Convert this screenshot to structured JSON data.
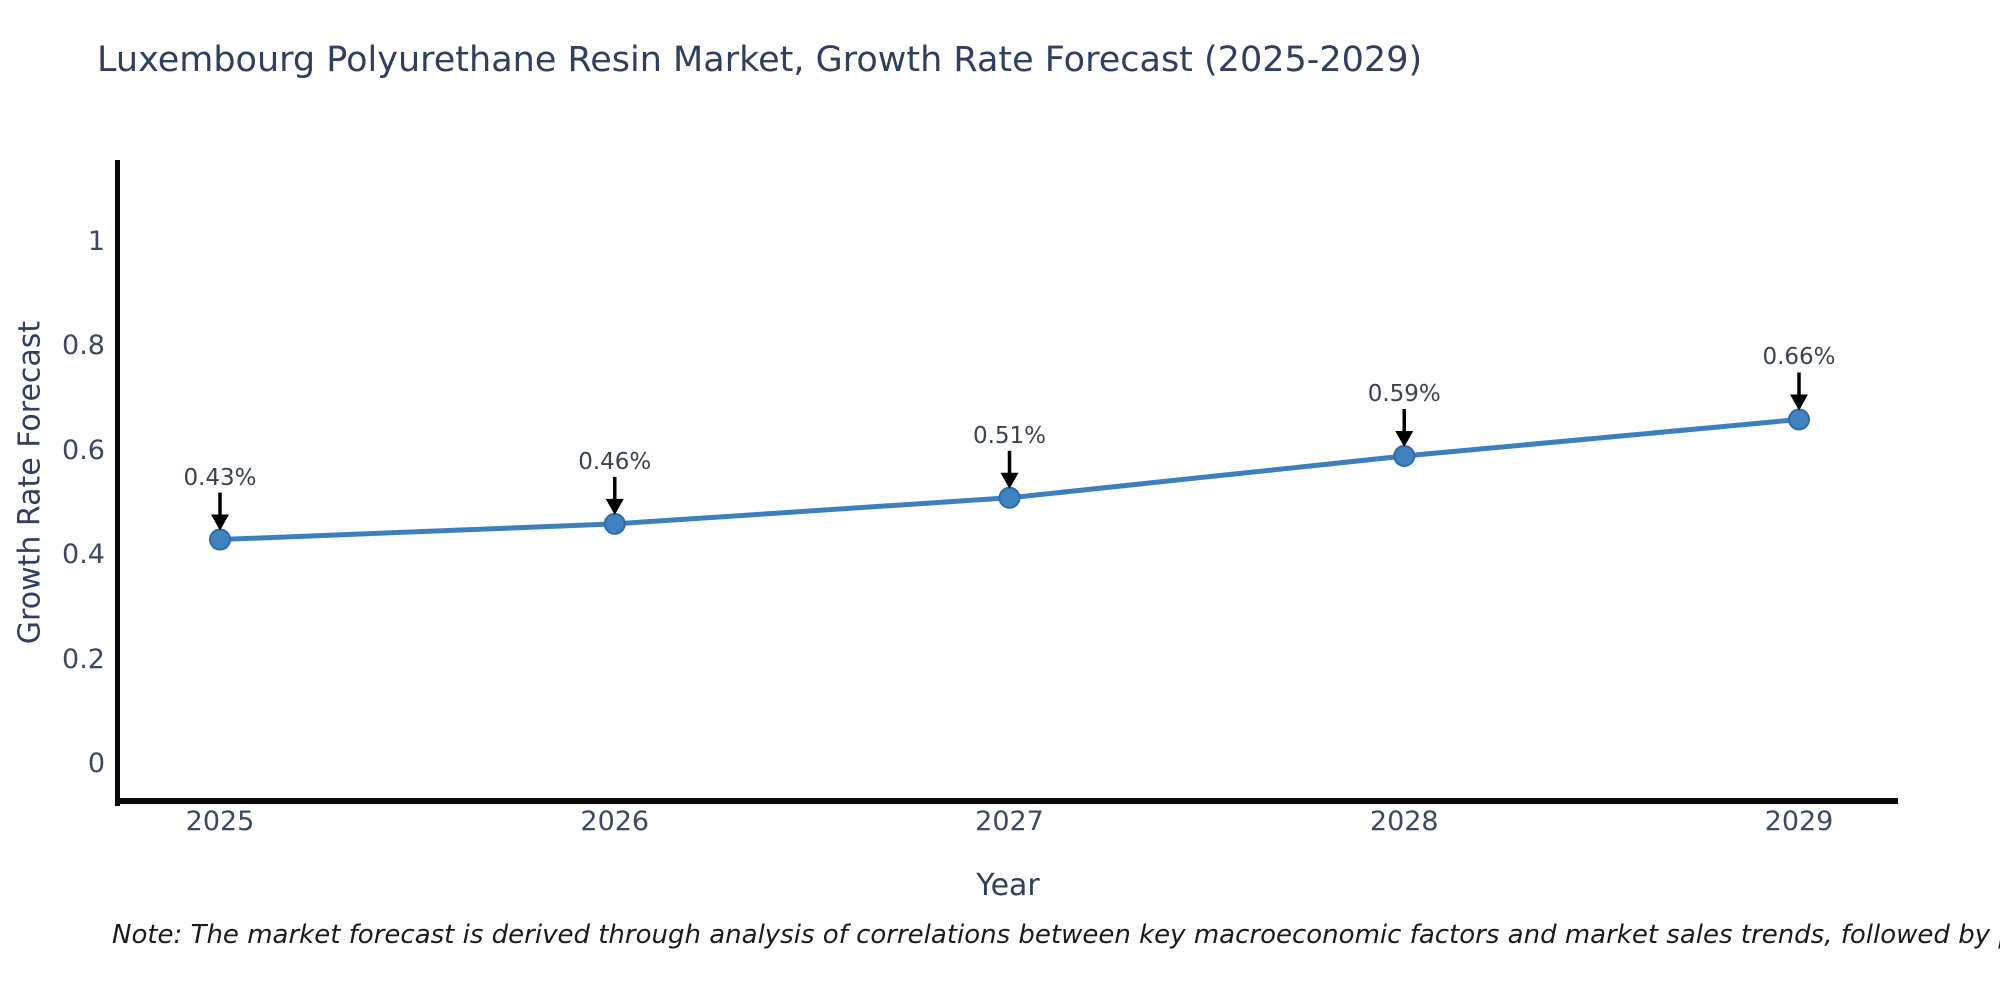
{
  "title": "Luxembourg Polyurethane Resin Market, Growth Rate Forecast (2025-2029)",
  "note": "Note: The market forecast is derived through analysis of correlations between key macroeconomic factors and market sales trends, followed by predictive modeling to project future sales",
  "chart_data": {
    "type": "line",
    "x": [
      2025,
      2026,
      2027,
      2028,
      2029
    ],
    "series": [
      {
        "name": "Growth Rate Forecast",
        "values": [
          0.43,
          0.46,
          0.51,
          0.59,
          0.66
        ]
      }
    ],
    "point_labels": [
      "0.43%",
      "0.46%",
      "0.51%",
      "0.59%",
      "0.66%"
    ],
    "title": "Luxembourg Polyurethane Resin Market, Growth Rate Forecast (2025-2029)",
    "xlabel": "Year",
    "ylabel": "Growth Rate Forecast",
    "xticks": [
      "2025",
      "2026",
      "2027",
      "2028",
      "2029"
    ],
    "yticks": [
      "0",
      "0.2",
      "0.4",
      "0.6",
      "0.8",
      "1"
    ],
    "ytick_values": [
      0,
      0.2,
      0.4,
      0.6,
      0.8,
      1
    ],
    "ylim": [
      -0.08,
      1.16
    ],
    "grid": false,
    "legend_position": "none",
    "line_color": "#3d7ebf",
    "marker_color": "#3f81c1",
    "marker_edge_color": "#2d6ca8",
    "annotation_arrow_color": "#000000",
    "text_color": "#2e3f5f"
  }
}
